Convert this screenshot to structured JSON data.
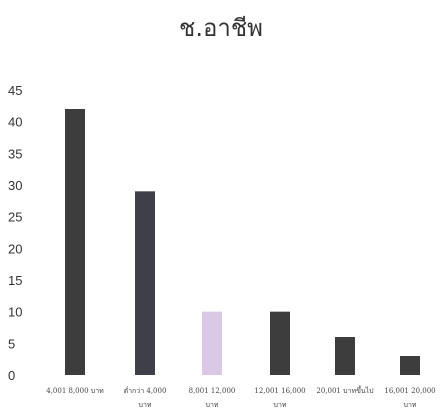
{
  "chart_data": {
    "type": "bar",
    "title": "ช.อาชีพ",
    "xlabel": "",
    "ylabel": "",
    "ylim": [
      0,
      45
    ],
    "yticks": [
      0,
      5,
      10,
      15,
      20,
      25,
      30,
      35,
      40,
      45
    ],
    "grid": false,
    "categories": [
      [
        "4,001 8,000 บาท",
        ""
      ],
      [
        "ต่ำกว่า 4,000",
        "บาท"
      ],
      [
        "8,001 12,000",
        "บาท"
      ],
      [
        "12,001 16,000",
        "บาท"
      ],
      [
        "20,001 บาทขึ้นไป",
        ""
      ],
      [
        "16,001 20,000",
        "บาท"
      ]
    ],
    "values": [
      42,
      29,
      10,
      10,
      6,
      3
    ],
    "colors": [
      "#3d3d3d",
      "#3f3f4a",
      "#d9c8e6",
      "#3d3d3d",
      "#3d3d3d",
      "#3d3d3d"
    ]
  }
}
